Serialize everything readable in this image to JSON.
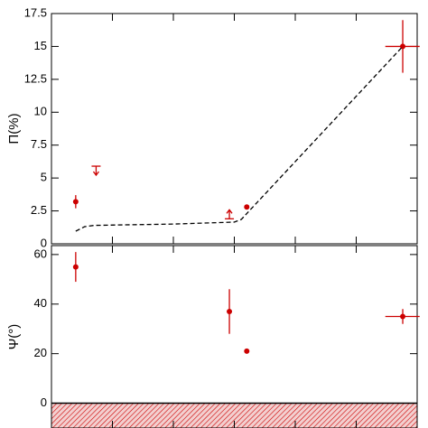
{
  "chart_data": [
    {
      "type": "scatter",
      "ylabel": "Π(%)",
      "xlog": true,
      "xlim": [
        10000000000000.0,
        1e+19
      ],
      "xticks": [
        10000000000000.0,
        100000000000000.0,
        1000000000000000.0,
        1e+16,
        1e+17,
        1e+18,
        1e+19
      ],
      "ylim": [
        0,
        17.5
      ],
      "yticks": [
        0,
        2.5,
        5,
        7.5,
        10,
        12.5,
        15,
        17.5
      ],
      "color": "#cc0000",
      "series": [
        {
          "marker": "dot",
          "x": [
            25000000000000.0,
            1.6e+16,
            5.8e+18
          ],
          "values": [
            3.2,
            2.8,
            15
          ],
          "yerr": [
            0.5,
            null,
            2
          ],
          "xmin": [
            null,
            null,
            3e+18
          ],
          "xmax": [
            null,
            null,
            1.1e+19
          ]
        },
        {
          "marker": "upper-limit",
          "x": [
            54000000000000.0
          ],
          "values": [
            5.9
          ]
        },
        {
          "marker": "lower-limit",
          "x": [
            8300000000000000.0
          ],
          "values": [
            1.9
          ]
        },
        {
          "line": "dashed",
          "x": [
            25000000000000.0,
            35000000000000.0,
            50000000000000.0,
            1000000000000000.0,
            1e+16,
            1.3e+16,
            5.8e+18
          ],
          "values": [
            0.96,
            1.3,
            1.4,
            1.5,
            1.65,
            1.85,
            15
          ]
        }
      ]
    },
    {
      "type": "scatter",
      "ylabel": "Ψ(°)",
      "xlog": true,
      "xlim": [
        10000000000000.0,
        1e+19
      ],
      "xticks": [
        10000000000000.0,
        100000000000000.0,
        1000000000000000.0,
        1e+16,
        1e+17,
        1e+18,
        1e+19
      ],
      "ylim": [
        -10,
        63.6
      ],
      "yticks": [
        0,
        20,
        40,
        60
      ],
      "color": "#cc0000",
      "hatch_below": 0,
      "series": [
        {
          "marker": "dot",
          "x": [
            25000000000000.0,
            8300000000000000.0,
            1.6e+16,
            5.8e+18
          ],
          "values": [
            55,
            37,
            21,
            35
          ],
          "yerr": [
            6,
            9,
            null,
            3
          ],
          "xmin": [
            null,
            null,
            null,
            3e+18
          ],
          "xmax": [
            null,
            null,
            null,
            1.1e+19
          ]
        }
      ]
    }
  ]
}
